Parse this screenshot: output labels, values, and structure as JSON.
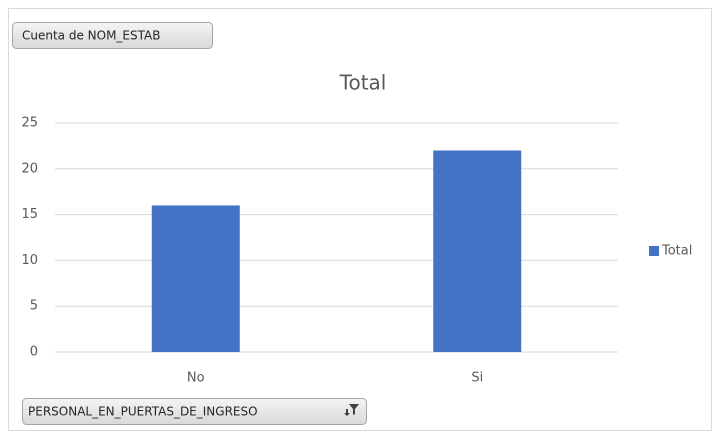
{
  "chart_data": {
    "type": "bar",
    "title": "Total",
    "value_field_button": "Cuenta de NOM_ESTAB",
    "axis_field_button": "PERSONAL_EN_PUERTAS_DE_INGRESO",
    "categories": [
      "No",
      "Si"
    ],
    "series": [
      {
        "name": "Total",
        "color": "#4472c4",
        "values": [
          16,
          22
        ]
      }
    ],
    "ylim": [
      0,
      25
    ],
    "yticks": [
      0,
      5,
      10,
      15,
      20,
      25
    ],
    "grid": true,
    "legend": "right"
  }
}
